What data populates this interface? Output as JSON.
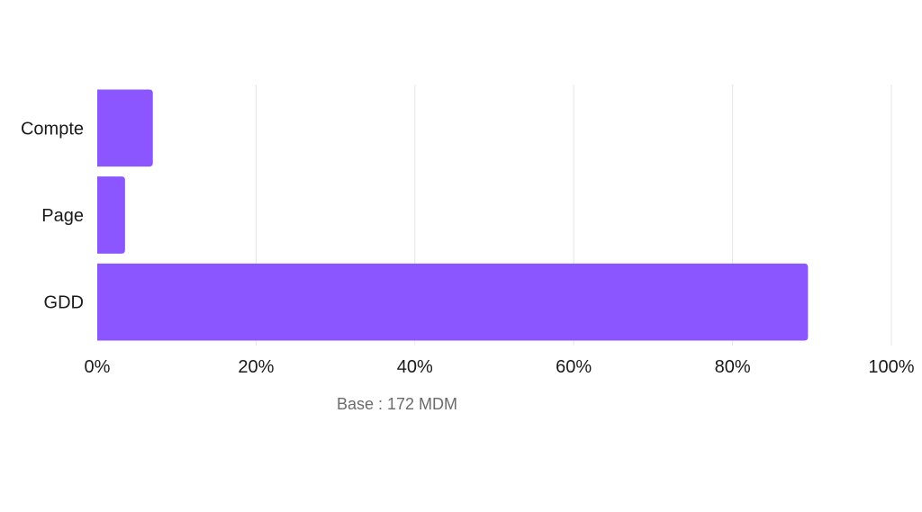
{
  "chart_data": {
    "type": "bar",
    "orientation": "horizontal",
    "categories": [
      "Compte",
      "Page",
      "GDD"
    ],
    "values": [
      7,
      3.5,
      89.5
    ],
    "xlim": [
      0,
      100
    ],
    "x_ticks": [
      "0%",
      "20%",
      "40%",
      "60%",
      "80%",
      "100%"
    ],
    "grid": true,
    "bar_color": "#8b55ff",
    "grid_color": "#e6e6e6",
    "note": "Base : 172 MDM"
  }
}
